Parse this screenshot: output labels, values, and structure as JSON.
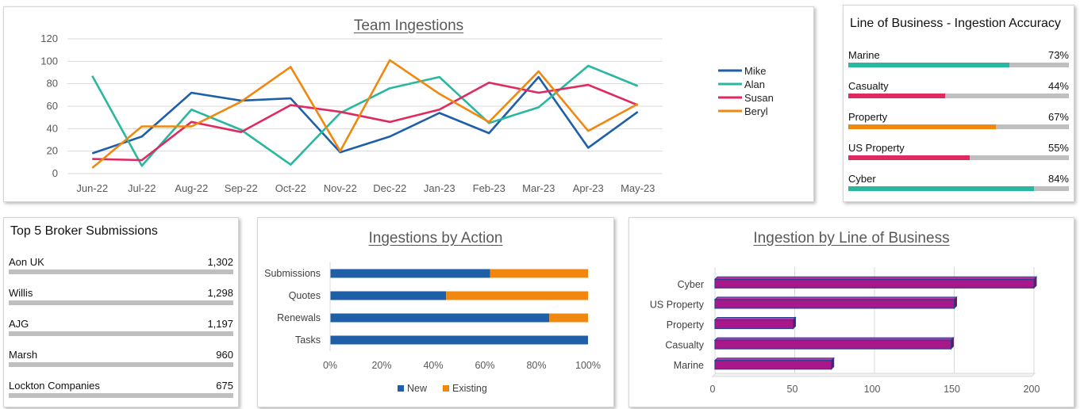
{
  "team_ingestions": {
    "title": "Team Ingestions"
  },
  "accuracy_panel": {
    "title": "Line of Business - Ingestion Accuracy",
    "items": [
      {
        "label": "Marine",
        "value": "73%",
        "fraction": 0.73,
        "color": "#2ab7a0"
      },
      {
        "label": "Casualty",
        "value": "44%",
        "fraction": 0.44,
        "color": "#e0295f"
      },
      {
        "label": "Property",
        "value": "67%",
        "fraction": 0.67,
        "color": "#f0880f"
      },
      {
        "label": "US Property",
        "value": "55%",
        "fraction": 0.55,
        "color": "#e0295f"
      },
      {
        "label": "Cyber",
        "value": "84%",
        "fraction": 0.84,
        "color": "#2ab7a0"
      }
    ]
  },
  "broker_panel": {
    "title": "Top 5 Broker Submissions",
    "items": [
      {
        "label": "Aon UK",
        "value": "1,302"
      },
      {
        "label": "Willis",
        "value": "1,298"
      },
      {
        "label": "AJG",
        "value": "1,197"
      },
      {
        "label": "Marsh",
        "value": "960"
      },
      {
        "label": "Lockton Companies",
        "value": "675"
      }
    ]
  },
  "ingestions_by_action": {
    "title": "Ingestions by Action"
  },
  "ingestion_by_lob": {
    "title": "Ingestion by Line of Business"
  },
  "chart_data": [
    {
      "type": "line",
      "title": "Team Ingestions",
      "categories": [
        "Jun-22",
        "Jul-22",
        "Aug-22",
        "Sep-22",
        "Oct-22",
        "Nov-22",
        "Dec-22",
        "Jan-23",
        "Feb-23",
        "Mar-23",
        "Apr-23",
        "May-23"
      ],
      "ylim": [
        0,
        120
      ],
      "yticks": [
        0,
        20,
        40,
        60,
        80,
        100,
        120
      ],
      "grid": true,
      "legend": "right",
      "series": [
        {
          "name": "Mike",
          "color": "#1f5fa8",
          "values": [
            18,
            33,
            72,
            65,
            67,
            19,
            33,
            54,
            36,
            86,
            23,
            55
          ]
        },
        {
          "name": "Alan",
          "color": "#2ab7a0",
          "values": [
            87,
            7,
            57,
            39,
            8,
            54,
            76,
            86,
            45,
            59,
            96,
            78
          ]
        },
        {
          "name": "Susan",
          "color": "#e0295f",
          "values": [
            13,
            12,
            46,
            37,
            61,
            55,
            46,
            57,
            81,
            72,
            79,
            61
          ]
        },
        {
          "name": "Beryl",
          "color": "#f0880f",
          "values": [
            5,
            42,
            42,
            64,
            95,
            20,
            101,
            71,
            46,
            91,
            38,
            62
          ]
        }
      ]
    },
    {
      "type": "bar",
      "orientation": "horizontal",
      "stacked": "percent",
      "title": "Ingestions by Action",
      "categories": [
        "Submissions",
        "Quotes",
        "Renewals",
        "Tasks"
      ],
      "xlim": [
        0,
        100
      ],
      "xticks": [
        "0%",
        "20%",
        "40%",
        "60%",
        "80%",
        "100%"
      ],
      "legend": "bottom",
      "series": [
        {
          "name": "New",
          "color": "#1f5fa8",
          "values": [
            62,
            45,
            85,
            100
          ]
        },
        {
          "name": "Existing",
          "color": "#f0880f",
          "values": [
            38,
            55,
            15,
            0
          ]
        }
      ]
    },
    {
      "type": "bar",
      "orientation": "horizontal",
      "title": "Ingestion by Line of Business",
      "categories": [
        "Cyber",
        "US Property",
        "Property",
        "Casualty",
        "Marine"
      ],
      "values": [
        200,
        150,
        49,
        148,
        73
      ],
      "xlim": [
        0,
        200
      ],
      "xticks": [
        0,
        50,
        100,
        150,
        200
      ],
      "grid": true,
      "color": "#a8188a"
    }
  ]
}
